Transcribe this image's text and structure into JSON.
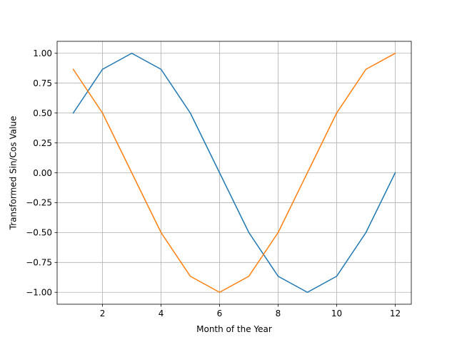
{
  "chart_data": {
    "type": "line",
    "title": "",
    "xlabel": "Month of the Year",
    "ylabel": "Transformed Sin/Cos Value",
    "xlim": [
      0.45,
      12.55
    ],
    "ylim": [
      -1.1,
      1.1
    ],
    "grid": true,
    "legend": "none",
    "x": [
      1,
      2,
      3,
      4,
      5,
      6,
      7,
      8,
      9,
      10,
      11,
      12
    ],
    "x_ticks": [
      2,
      4,
      6,
      8,
      10,
      12
    ],
    "x_tick_labels": [
      "2",
      "4",
      "6",
      "8",
      "10",
      "12"
    ],
    "y_ticks": [
      -1.0,
      -0.75,
      -0.5,
      -0.25,
      0.0,
      0.25,
      0.5,
      0.75,
      1.0
    ],
    "y_tick_labels": [
      "−1.00",
      "−0.75",
      "−0.50",
      "−0.25",
      "0.00",
      "0.25",
      "0.50",
      "0.75",
      "1.00"
    ],
    "series": [
      {
        "color": "#1f77b4",
        "values": [
          0.5,
          0.866,
          1.0,
          0.866,
          0.5,
          0.0,
          -0.5,
          -0.866,
          -1.0,
          -0.866,
          -0.5,
          0.0
        ]
      },
      {
        "color": "#ff7f0e",
        "values": [
          0.866,
          0.5,
          0.0,
          -0.5,
          -0.866,
          -1.0,
          -0.866,
          -0.5,
          0.0,
          0.5,
          0.866,
          1.0
        ]
      }
    ]
  }
}
